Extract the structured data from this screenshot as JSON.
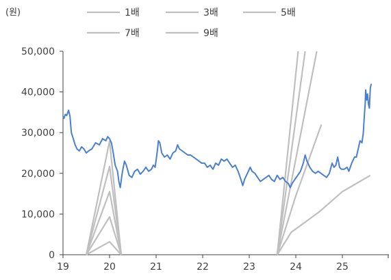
{
  "chart_data": {
    "type": "line",
    "unit_label": "(원)",
    "xlabel": "",
    "ylabel": "",
    "x_tick_labels": [
      "19",
      "20",
      "21",
      "22",
      "23",
      "24",
      "25"
    ],
    "x_ticks": [
      2019,
      2020,
      2021,
      2022,
      2023,
      2024,
      2025
    ],
    "xlim": [
      2019,
      2026
    ],
    "y_ticks": [
      0,
      10000,
      20000,
      30000,
      40000,
      50000
    ],
    "y_tick_labels": [
      "0",
      "10,000",
      "20,000",
      "30,000",
      "40,000",
      "50,000"
    ],
    "ylim": [
      0,
      50000
    ],
    "grid": false,
    "legend_position": "top",
    "colors": {
      "price": "#4a7fd0",
      "multiples": "#bfbfbf",
      "axis": "#404040"
    },
    "series": [
      {
        "name": "",
        "role": "price",
        "points": [
          [
            2019.0,
            34000
          ],
          [
            2019.02,
            33500
          ],
          [
            2019.05,
            34500
          ],
          [
            2019.08,
            34200
          ],
          [
            2019.12,
            35500
          ],
          [
            2019.15,
            34000
          ],
          [
            2019.18,
            30000
          ],
          [
            2019.22,
            28500
          ],
          [
            2019.26,
            27000
          ],
          [
            2019.3,
            26000
          ],
          [
            2019.35,
            25500
          ],
          [
            2019.4,
            26500
          ],
          [
            2019.45,
            26000
          ],
          [
            2019.5,
            25000
          ],
          [
            2019.55,
            25500
          ],
          [
            2019.62,
            26000
          ],
          [
            2019.7,
            27500
          ],
          [
            2019.78,
            27000
          ],
          [
            2019.85,
            28500
          ],
          [
            2019.92,
            28000
          ],
          [
            2019.96,
            29000
          ],
          [
            2020.0,
            28500
          ],
          [
            2020.04,
            27500
          ],
          [
            2020.08,
            25000
          ],
          [
            2020.12,
            22000
          ],
          [
            2020.17,
            20500
          ],
          [
            2020.2,
            18000
          ],
          [
            2020.23,
            16500
          ],
          [
            2020.27,
            20000
          ],
          [
            2020.32,
            23000
          ],
          [
            2020.36,
            22000
          ],
          [
            2020.42,
            19500
          ],
          [
            2020.48,
            19000
          ],
          [
            2020.54,
            20500
          ],
          [
            2020.6,
            21000
          ],
          [
            2020.66,
            19800
          ],
          [
            2020.72,
            20500
          ],
          [
            2020.78,
            21500
          ],
          [
            2020.84,
            20500
          ],
          [
            2020.9,
            21000
          ],
          [
            2020.94,
            22000
          ],
          [
            2020.98,
            21500
          ],
          [
            2021.02,
            25000
          ],
          [
            2021.05,
            28000
          ],
          [
            2021.08,
            27500
          ],
          [
            2021.12,
            25000
          ],
          [
            2021.18,
            24000
          ],
          [
            2021.24,
            24500
          ],
          [
            2021.3,
            23500
          ],
          [
            2021.36,
            25000
          ],
          [
            2021.42,
            25500
          ],
          [
            2021.46,
            27000
          ],
          [
            2021.5,
            26000
          ],
          [
            2021.56,
            25500
          ],
          [
            2021.62,
            25000
          ],
          [
            2021.68,
            24500
          ],
          [
            2021.74,
            24500
          ],
          [
            2021.8,
            24000
          ],
          [
            2021.86,
            23500
          ],
          [
            2021.92,
            23000
          ],
          [
            2021.98,
            22500
          ],
          [
            2022.04,
            22500
          ],
          [
            2022.1,
            21500
          ],
          [
            2022.16,
            22000
          ],
          [
            2022.22,
            21000
          ],
          [
            2022.28,
            22500
          ],
          [
            2022.34,
            22000
          ],
          [
            2022.4,
            23500
          ],
          [
            2022.46,
            23000
          ],
          [
            2022.52,
            23500
          ],
          [
            2022.58,
            22500
          ],
          [
            2022.64,
            21500
          ],
          [
            2022.7,
            22000
          ],
          [
            2022.76,
            20500
          ],
          [
            2022.82,
            18500
          ],
          [
            2022.86,
            17000
          ],
          [
            2022.9,
            18500
          ],
          [
            2022.96,
            20000
          ],
          [
            2023.02,
            21500
          ],
          [
            2023.06,
            20500
          ],
          [
            2023.12,
            20000
          ],
          [
            2023.18,
            19000
          ],
          [
            2023.24,
            18000
          ],
          [
            2023.3,
            18500
          ],
          [
            2023.36,
            19000
          ],
          [
            2023.42,
            19500
          ],
          [
            2023.48,
            18500
          ],
          [
            2023.54,
            18000
          ],
          [
            2023.6,
            19500
          ],
          [
            2023.66,
            18500
          ],
          [
            2023.72,
            19000
          ],
          [
            2023.78,
            18000
          ],
          [
            2023.84,
            17500
          ],
          [
            2023.88,
            16500
          ],
          [
            2023.92,
            17500
          ],
          [
            2023.98,
            18500
          ],
          [
            2024.04,
            19500
          ],
          [
            2024.1,
            20500
          ],
          [
            2024.16,
            22500
          ],
          [
            2024.2,
            24500
          ],
          [
            2024.24,
            23000
          ],
          [
            2024.3,
            21500
          ],
          [
            2024.36,
            20500
          ],
          [
            2024.42,
            20000
          ],
          [
            2024.48,
            20500
          ],
          [
            2024.54,
            20000
          ],
          [
            2024.6,
            19500
          ],
          [
            2024.66,
            19000
          ],
          [
            2024.72,
            20000
          ],
          [
            2024.78,
            22500
          ],
          [
            2024.82,
            21500
          ],
          [
            2024.86,
            22000
          ],
          [
            2024.9,
            24000
          ],
          [
            2024.94,
            21500
          ],
          [
            2024.98,
            21000
          ],
          [
            2025.04,
            21000
          ],
          [
            2025.1,
            21500
          ],
          [
            2025.14,
            20500
          ],
          [
            2025.2,
            22500
          ],
          [
            2025.26,
            24000
          ],
          [
            2025.3,
            24000
          ],
          [
            2025.34,
            26000
          ],
          [
            2025.38,
            28000
          ],
          [
            2025.42,
            27500
          ],
          [
            2025.45,
            30000
          ],
          [
            2025.47,
            34000
          ],
          [
            2025.49,
            37000
          ],
          [
            2025.5,
            40500
          ],
          [
            2025.52,
            38000
          ],
          [
            2025.54,
            39500
          ],
          [
            2025.56,
            37000
          ],
          [
            2025.58,
            36000
          ],
          [
            2025.6,
            41000
          ],
          [
            2025.62,
            42000
          ]
        ]
      },
      {
        "name": "1배",
        "role": "multiple",
        "segments": [
          [
            [
              2019.5,
              0
            ],
            [
              2020.0,
              3200
            ],
            [
              2020.25,
              0
            ]
          ],
          [
            [
              2023.6,
              0
            ],
            [
              2023.9,
              5500
            ],
            [
              2024.5,
              10500
            ],
            [
              2025.0,
              15500
            ],
            [
              2025.6,
              19500
            ]
          ]
        ]
      },
      {
        "name": "3배",
        "role": "multiple",
        "segments": [
          [
            [
              2019.5,
              0
            ],
            [
              2020.0,
              9300
            ],
            [
              2020.25,
              0
            ]
          ],
          [
            [
              2023.6,
              0
            ],
            [
              2024.0,
              14500
            ],
            [
              2024.55,
              32000
            ]
          ]
        ]
      },
      {
        "name": "5배",
        "role": "multiple",
        "segments": [
          [
            [
              2019.5,
              0
            ],
            [
              2020.0,
              15500
            ],
            [
              2020.25,
              0
            ]
          ],
          [
            [
              2023.6,
              0
            ],
            [
              2024.45,
              50000
            ]
          ]
        ]
      },
      {
        "name": "7배",
        "role": "multiple",
        "segments": [
          [
            [
              2019.5,
              0
            ],
            [
              2020.0,
              21700
            ],
            [
              2020.25,
              0
            ]
          ],
          [
            [
              2023.6,
              0
            ],
            [
              2024.2,
              50000
            ]
          ]
        ]
      },
      {
        "name": "9배",
        "role": "multiple",
        "segments": [
          [
            [
              2019.5,
              0
            ],
            [
              2020.0,
              27900
            ],
            [
              2020.25,
              0
            ]
          ],
          [
            [
              2023.6,
              0
            ],
            [
              2024.05,
              50000
            ]
          ]
        ]
      }
    ]
  }
}
